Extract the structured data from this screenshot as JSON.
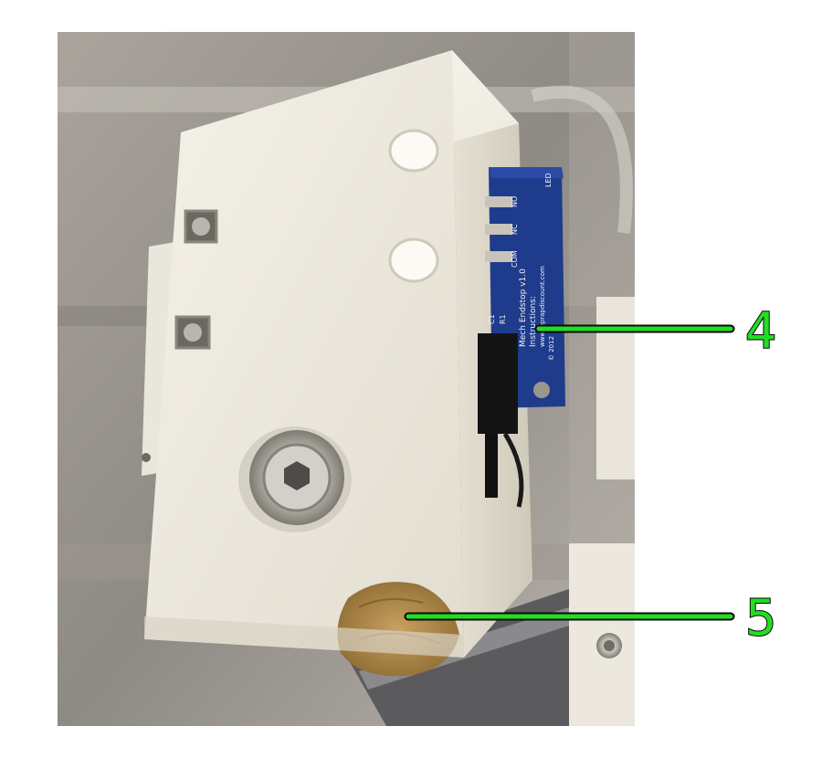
{
  "photo": {
    "subject": "3D-printed white endstop holder with a mechanical endstop circuit board and felt pad",
    "pcb_text": {
      "title": "Mech Endstop v1.0",
      "instructions": "Instructions:",
      "url": "www.reprapdiscount.com",
      "year": "© 2012",
      "pins": [
        "NO",
        "NC",
        "COM"
      ],
      "refs": [
        "C1",
        "R1",
        "LED"
      ]
    }
  },
  "callouts": [
    {
      "label": "4",
      "color": "#22dd22"
    },
    {
      "label": "5",
      "color": "#22dd22"
    }
  ]
}
